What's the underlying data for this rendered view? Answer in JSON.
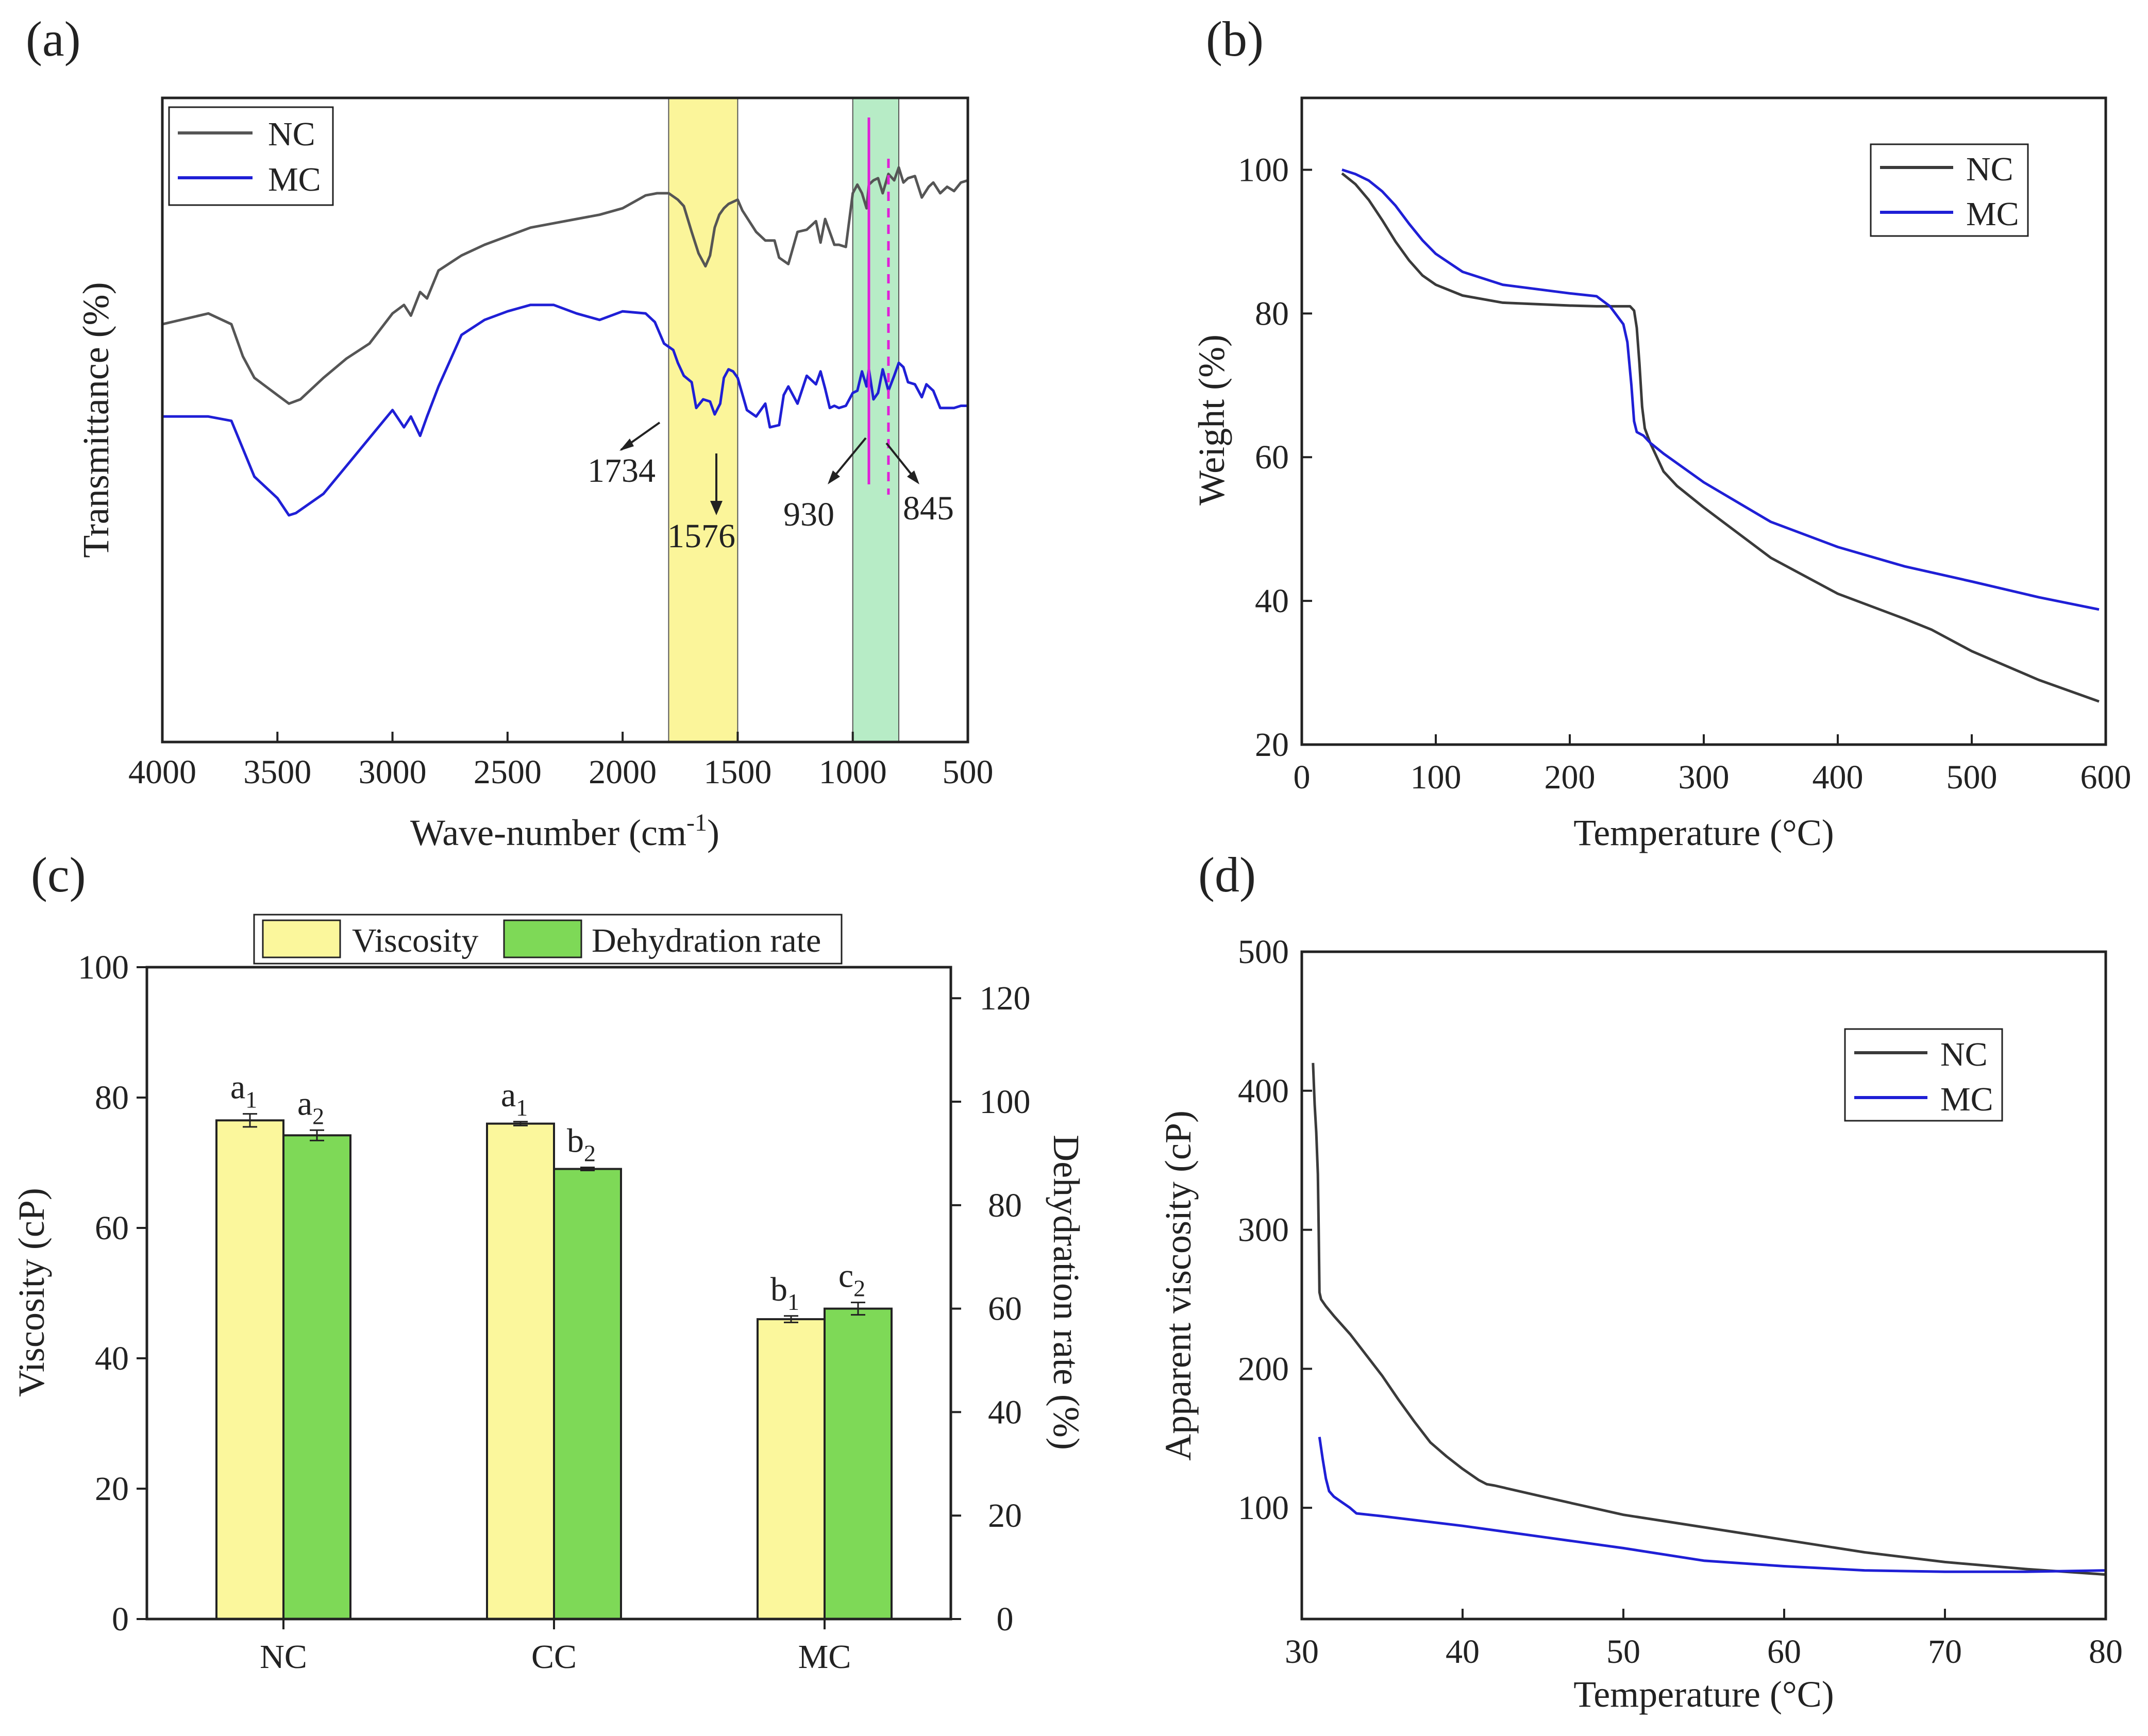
{
  "colors": {
    "nc": "#3a3a3a",
    "nc_a": "#555555",
    "mc": "#1f1fd6",
    "yellow_band": "#fbf59a",
    "green_band": "#b7ecc6",
    "magenta": "#e020d8",
    "bar_yellow": "#fbf79c",
    "bar_green": "#7ed957"
  },
  "chart_data": [
    {
      "panel": "(a)",
      "type": "line",
      "xlabel": "Wave-number (cm",
      "xlabel_sup": "-1",
      "xlabel_close": ")",
      "ylabel": "Transmittance (%)",
      "xlim": [
        4000,
        500
      ],
      "xticks": [
        "4000",
        "3500",
        "3000",
        "2500",
        "2000",
        "1500",
        "1000",
        "500"
      ],
      "legend": [
        "NC",
        "MC"
      ],
      "bands": [
        {
          "from": 1800,
          "to": 1500,
          "color": "yellow"
        },
        {
          "from": 1000,
          "to": 800,
          "color": "green"
        }
      ],
      "markers": [
        {
          "x": 930,
          "style": "solid"
        },
        {
          "x": 845,
          "style": "dashed"
        }
      ],
      "annotations": [
        "1734",
        "1576",
        "930",
        "845"
      ],
      "series": [
        {
          "name": "NC",
          "x": [
            4000,
            3800,
            3700,
            3650,
            3600,
            3500,
            3450,
            3400,
            3300,
            3200,
            3100,
            3000,
            2950,
            2920,
            2880,
            2850,
            2800,
            2700,
            2600,
            2500,
            2400,
            2300,
            2200,
            2100,
            2000,
            1950,
            1900,
            1850,
            1800,
            1760,
            1734,
            1700,
            1670,
            1640,
            1620,
            1600,
            1580,
            1560,
            1540,
            1500,
            1480,
            1420,
            1380,
            1340,
            1320,
            1280,
            1240,
            1200,
            1160,
            1140,
            1120,
            1080,
            1060,
            1030,
            1000,
            980,
            960,
            940,
            930,
            910,
            890,
            870,
            845,
            820,
            800,
            780,
            760,
            730,
            700,
            670,
            650,
            620,
            590,
            560,
            530,
            500
          ],
          "y": [
            90.3,
            90.8,
            90.3,
            88.8,
            87.8,
            87.0,
            86.6,
            86.8,
            87.8,
            88.7,
            89.4,
            90.8,
            91.2,
            90.7,
            91.8,
            91.5,
            92.8,
            93.5,
            94.0,
            94.4,
            94.8,
            95.0,
            95.2,
            95.4,
            95.7,
            96.0,
            96.3,
            96.4,
            96.4,
            96.1,
            95.8,
            94.6,
            93.6,
            93.0,
            93.5,
            94.8,
            95.4,
            95.7,
            95.9,
            96.1,
            95.6,
            94.6,
            94.2,
            94.2,
            93.4,
            93.1,
            94.6,
            94.7,
            95.1,
            94.1,
            95.2,
            94.0,
            94.0,
            93.9,
            96.4,
            96.8,
            96.4,
            95.7,
            96.8,
            97.0,
            97.1,
            96.4,
            97.3,
            97.0,
            97.6,
            96.9,
            97.1,
            97.2,
            96.2,
            96.7,
            96.9,
            96.4,
            96.7,
            96.5,
            96.9,
            97.0
          ]
        },
        {
          "name": "MC",
          "x": [
            4000,
            3800,
            3700,
            3650,
            3600,
            3500,
            3450,
            3420,
            3300,
            3200,
            3100,
            3000,
            2950,
            2920,
            2880,
            2850,
            2800,
            2700,
            2600,
            2500,
            2400,
            2300,
            2200,
            2100,
            2000,
            1900,
            1860,
            1820,
            1780,
            1760,
            1734,
            1700,
            1680,
            1650,
            1620,
            1600,
            1576,
            1560,
            1540,
            1520,
            1500,
            1460,
            1420,
            1380,
            1360,
            1320,
            1300,
            1280,
            1240,
            1200,
            1160,
            1140,
            1120,
            1100,
            1080,
            1060,
            1030,
            1000,
            980,
            960,
            940,
            930,
            910,
            890,
            870,
            845,
            820,
            800,
            780,
            760,
            730,
            700,
            680,
            650,
            620,
            590,
            560,
            530,
            500
          ],
          "y": [
            86.0,
            86.0,
            85.8,
            84.5,
            83.2,
            82.2,
            81.4,
            81.5,
            82.4,
            83.7,
            85.0,
            86.3,
            85.5,
            86.0,
            85.1,
            86.0,
            87.4,
            89.8,
            90.5,
            90.9,
            91.2,
            91.2,
            90.8,
            90.5,
            90.9,
            90.8,
            90.4,
            89.4,
            89.1,
            88.5,
            87.9,
            87.6,
            86.4,
            86.8,
            86.7,
            86.1,
            86.6,
            87.8,
            88.2,
            88.1,
            87.8,
            86.3,
            86.0,
            86.6,
            85.5,
            85.6,
            87.0,
            87.4,
            86.6,
            87.9,
            87.5,
            88.1,
            87.3,
            86.4,
            86.5,
            86.4,
            86.5,
            87.1,
            87.2,
            88.1,
            87.4,
            88.2,
            86.8,
            87.1,
            88.2,
            87.2,
            87.9,
            88.5,
            88.3,
            87.6,
            87.5,
            86.9,
            87.5,
            87.2,
            86.4,
            86.4,
            86.4,
            86.5,
            86.5
          ]
        }
      ]
    },
    {
      "panel": "(b)",
      "type": "line",
      "xlabel": "Temperature (°C)",
      "ylabel": "Weight (%)",
      "xlim": [
        0,
        600
      ],
      "ylim": [
        20,
        110
      ],
      "xticks": [
        "0",
        "100",
        "200",
        "300",
        "400",
        "500",
        "600"
      ],
      "yticks": [
        "20",
        "40",
        "60",
        "80",
        "100"
      ],
      "legend": [
        "NC",
        "MC"
      ],
      "series": [
        {
          "name": "NC",
          "x": [
            30,
            40,
            50,
            60,
            70,
            80,
            90,
            100,
            120,
            150,
            200,
            220,
            245,
            248,
            250,
            252,
            254,
            256,
            258,
            260,
            265,
            270,
            280,
            300,
            350,
            400,
            450,
            470,
            500,
            550,
            595
          ],
          "y": [
            99.5,
            98.0,
            95.8,
            93.0,
            90.0,
            87.4,
            85.3,
            84.0,
            82.5,
            81.5,
            81.1,
            81.0,
            81.0,
            80.4,
            78.0,
            73.0,
            67.0,
            64.0,
            63.0,
            62.0,
            60.0,
            58.0,
            56.0,
            53.0,
            46.0,
            41.0,
            37.5,
            36.0,
            33.0,
            29.0,
            26.0
          ]
        },
        {
          "name": "MC",
          "x": [
            30,
            40,
            50,
            60,
            70,
            80,
            90,
            100,
            120,
            150,
            200,
            220,
            230,
            240,
            243,
            246,
            248,
            250,
            255,
            260,
            270,
            300,
            350,
            400,
            450,
            500,
            550,
            595
          ],
          "y": [
            100.0,
            99.4,
            98.5,
            97.0,
            95.0,
            92.5,
            90.2,
            88.3,
            85.8,
            84.0,
            82.8,
            82.4,
            81.0,
            78.5,
            76.0,
            70.0,
            65.0,
            63.5,
            63.0,
            62.0,
            60.5,
            56.5,
            51.0,
            47.5,
            44.8,
            42.7,
            40.5,
            38.8
          ]
        }
      ]
    },
    {
      "panel": "(c)",
      "type": "bar",
      "categories": [
        "NC",
        "CC",
        "MC"
      ],
      "ylabel": "Viscosity (cP)",
      "y2label": "Dehydration rate (%)",
      "ylim": [
        0,
        100
      ],
      "y2lim": [
        0,
        126
      ],
      "yticks": [
        "0",
        "20",
        "40",
        "60",
        "80",
        "100"
      ],
      "y2ticks": [
        "0",
        "20",
        "40",
        "60",
        "80",
        "100",
        "120"
      ],
      "legend": [
        "Viscosity",
        "Dehydration rate"
      ],
      "series": [
        {
          "name": "Viscosity",
          "axis": "left",
          "values": [
            76.5,
            76.0,
            46.0
          ],
          "errors": [
            1.0,
            0.3,
            0.5
          ],
          "labels": [
            "a",
            "a",
            "b"
          ],
          "subs": [
            "1",
            "1",
            "1"
          ]
        },
        {
          "name": "Dehydration rate",
          "axis": "right",
          "values": [
            93.5,
            87.0,
            60.0
          ],
          "errors": [
            1.0,
            0.3,
            1.2
          ],
          "labels": [
            "a",
            "b",
            "c"
          ],
          "subs": [
            "2",
            "2",
            "2"
          ]
        }
      ]
    },
    {
      "panel": "(d)",
      "type": "line",
      "xlabel": "Temperature (°C)",
      "ylabel": "Apparent viscosity (cP)",
      "xlim": [
        30,
        80
      ],
      "ylim": [
        20,
        500
      ],
      "xticks": [
        "30",
        "40",
        "50",
        "60",
        "70",
        "80"
      ],
      "yticks": [
        "100",
        "200",
        "300",
        "400",
        "500"
      ],
      "legend": [
        "NC",
        "MC"
      ],
      "series": [
        {
          "name": "NC",
          "x": [
            30.7,
            30.8,
            30.9,
            31.0,
            31.05,
            31.1,
            31.2,
            31.5,
            32,
            33,
            34,
            35,
            36,
            37,
            38,
            39,
            40,
            41,
            41.5,
            42,
            45,
            50,
            55,
            60,
            65,
            70,
            75,
            80
          ],
          "y": [
            420,
            390,
            370,
            340,
            300,
            255,
            250,
            245,
            238,
            225,
            210,
            195,
            178,
            162,
            147,
            137,
            128,
            120,
            117,
            116,
            108,
            95,
            86,
            77,
            68,
            61,
            56,
            52
          ]
        },
        {
          "name": "MC",
          "x": [
            31.1,
            31.3,
            31.5,
            31.7,
            32,
            32.5,
            33,
            33.2,
            33.4,
            35,
            40,
            45,
            50,
            55,
            60,
            65,
            70,
            75,
            80
          ],
          "y": [
            151,
            135,
            121,
            112,
            108,
            104,
            100,
            98,
            96,
            94,
            87,
            79,
            71,
            62,
            58,
            55,
            54,
            54,
            55
          ]
        }
      ]
    }
  ]
}
